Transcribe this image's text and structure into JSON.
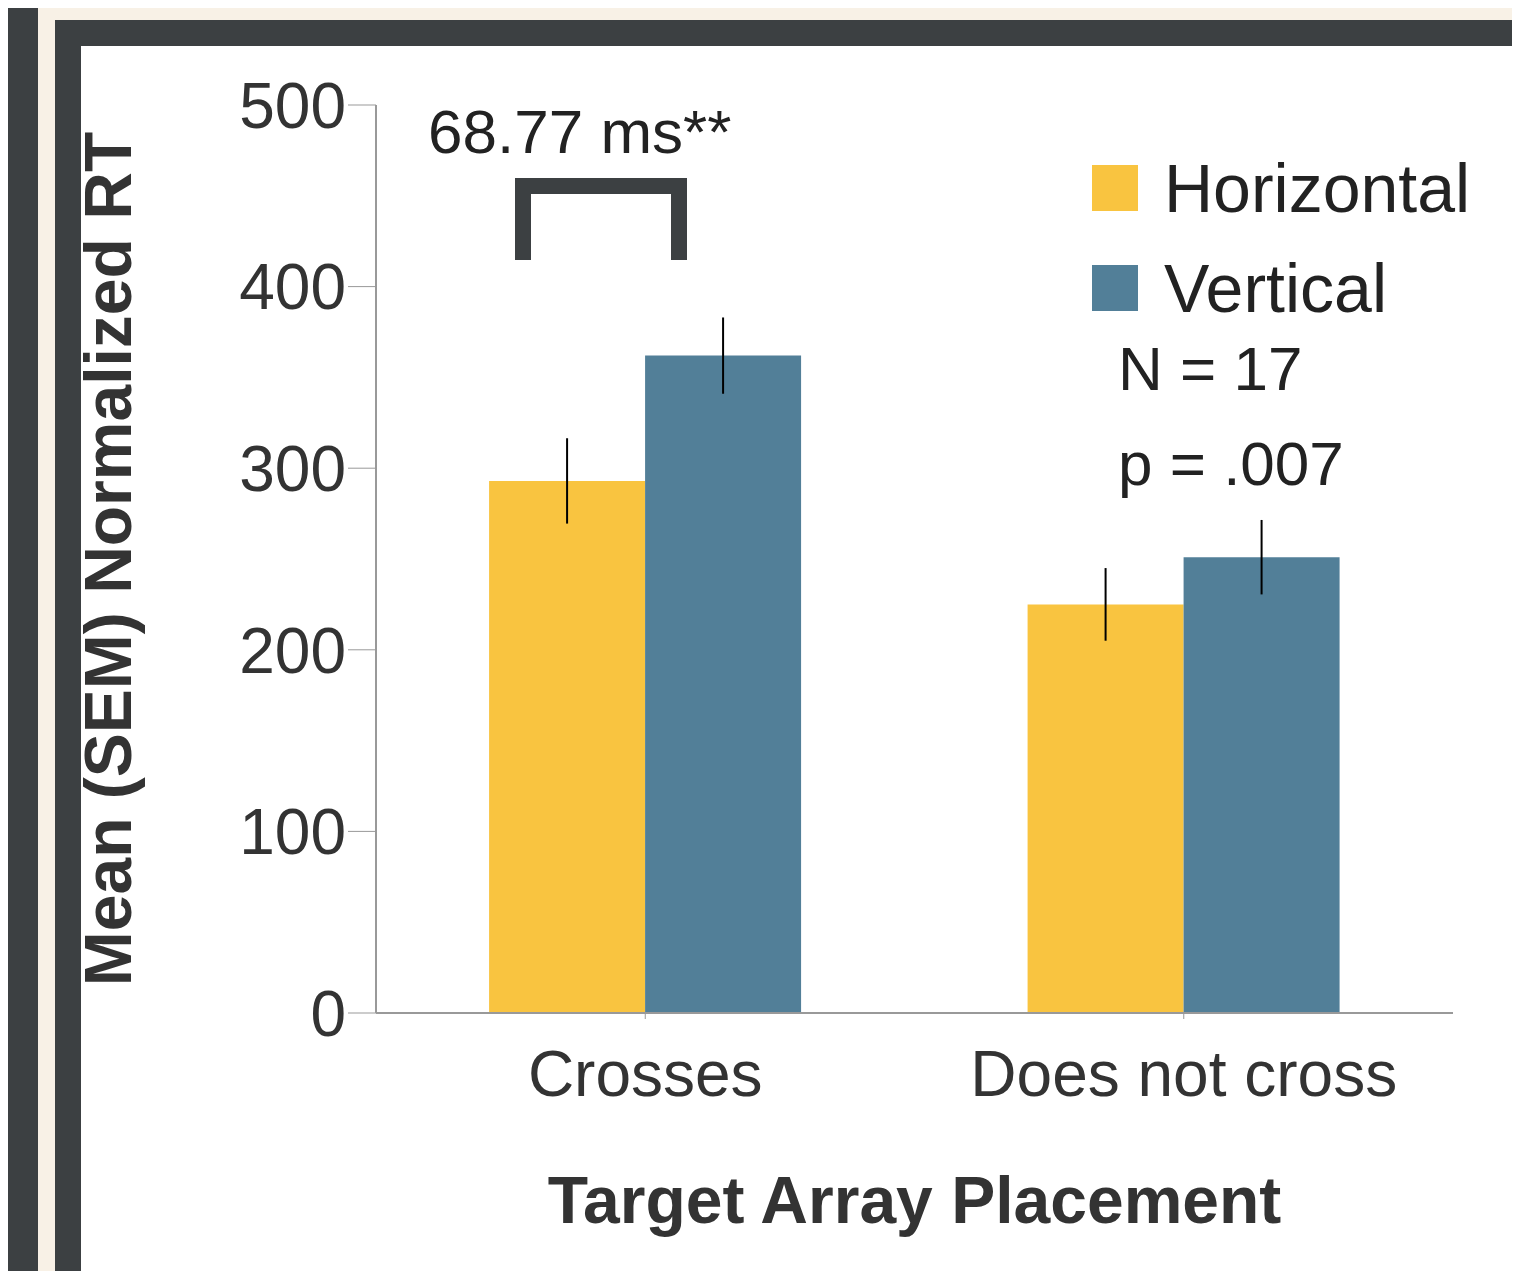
{
  "chart_data": {
    "type": "bar",
    "xlabel": "Target Array Placement",
    "ylabel": "Mean (SEM) Normalized RT",
    "categories": [
      "Crosses",
      "Does not cross"
    ],
    "series": [
      {
        "name": "Horizontal",
        "color": "#f9c440",
        "values": [
          293,
          225
        ],
        "errors": [
          23.5,
          20
        ]
      },
      {
        "name": "Vertical",
        "color": "#527f98",
        "values": [
          362,
          251
        ],
        "errors": [
          21,
          20.5
        ]
      }
    ],
    "ylim": [
      0,
      500
    ],
    "yticks": [
      0,
      100,
      200,
      300,
      400,
      500
    ],
    "grid": false,
    "legend": "top right",
    "annotations": [
      "68.77 ms**",
      "N = 17",
      "p = .007"
    ]
  }
}
